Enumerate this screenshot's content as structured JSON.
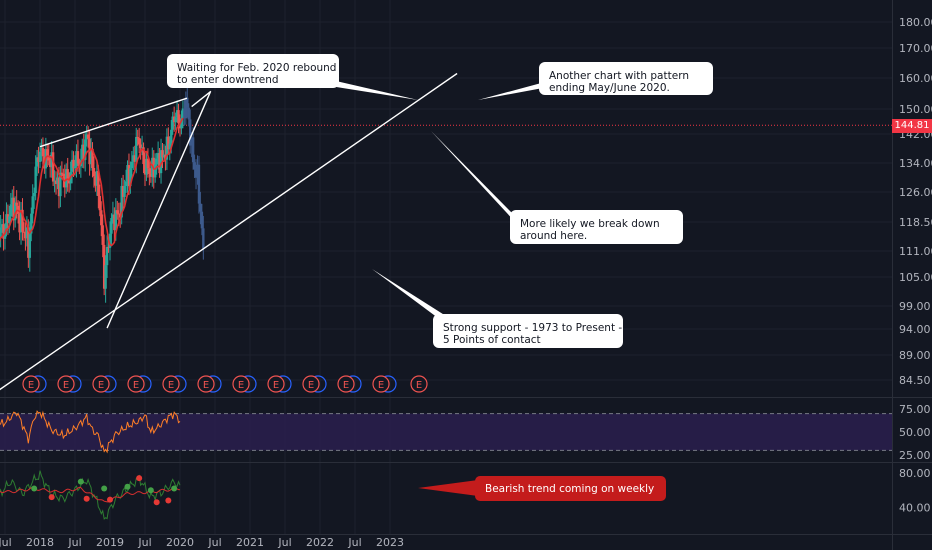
{
  "chart_data": [
    {
      "type": "candlestick",
      "panel": "price",
      "x_labels": [
        "Jul",
        "2018",
        "Jul",
        "2019",
        "Jul",
        "2020",
        "Jul",
        "2021",
        "Jul",
        "2022",
        "Jul",
        "2023"
      ],
      "y_ticks": [
        "180.00",
        "170.00",
        "160.00",
        "150.00",
        "142.00",
        "134.00",
        "126.00",
        "118.50",
        "111.00",
        "105.00",
        "99.00",
        "94.00",
        "89.00",
        "84.50"
      ],
      "y_tick_values": [
        180,
        170,
        160,
        150,
        142,
        134,
        126,
        118.5,
        111,
        105,
        99,
        94,
        89,
        84.5
      ],
      "last_price": "144.81",
      "last_price_value": 144.81,
      "closes": [
        {
          "date": "2017-04",
          "close": 112
        },
        {
          "date": "2017-06",
          "close": 115
        },
        {
          "date": "2017-08",
          "close": 121
        },
        {
          "date": "2017-09",
          "close": 123
        },
        {
          "date": "2017-10",
          "close": 116
        },
        {
          "date": "2017-11",
          "close": 113
        },
        {
          "date": "2017-12",
          "close": 128
        },
        {
          "date": "2018-01",
          "close": 138
        },
        {
          "date": "2018-03",
          "close": 133
        },
        {
          "date": "2018-04",
          "close": 128
        },
        {
          "date": "2018-06",
          "close": 131
        },
        {
          "date": "2018-08",
          "close": 136
        },
        {
          "date": "2018-09",
          "close": 140
        },
        {
          "date": "2018-10",
          "close": 134
        },
        {
          "date": "2018-11",
          "close": 126
        },
        {
          "date": "2018-12",
          "close": 106
        },
        {
          "date": "2019-01",
          "close": 116
        },
        {
          "date": "2019-02",
          "close": 120
        },
        {
          "date": "2019-03",
          "close": 124
        },
        {
          "date": "2019-04",
          "close": 130
        },
        {
          "date": "2019-05",
          "close": 136
        },
        {
          "date": "2019-06",
          "close": 140
        },
        {
          "date": "2019-07",
          "close": 134
        },
        {
          "date": "2019-08",
          "close": 130
        },
        {
          "date": "2019-09",
          "close": 136
        },
        {
          "date": "2019-10",
          "close": 134
        },
        {
          "date": "2019-11",
          "close": 140
        },
        {
          "date": "2019-12",
          "close": 147
        },
        {
          "date": "2020-01",
          "close": 146
        },
        {
          "date": "2020-02",
          "close": 152
        },
        {
          "date": "2020-03",
          "close": 138
        },
        {
          "date": "2020-04",
          "close": 130
        },
        {
          "date": "2020-05",
          "close": 110
        }
      ],
      "earnings_markers": [
        "E",
        "E",
        "E",
        "E",
        "E",
        "E",
        "E",
        "E",
        "E",
        "E",
        "E",
        "E"
      ],
      "annotations": [
        {
          "lines": [
            "Waiting for Feb. 2020 rebound",
            "to enter downtrend"
          ]
        },
        {
          "lines": [
            "Another chart with pattern",
            "ending May/June 2020."
          ]
        },
        {
          "lines": [
            "More likely we break down",
            "around here."
          ]
        },
        {
          "lines": [
            "Strong support - 1973 to Present -",
            "5 Points of contact"
          ]
        }
      ],
      "colors": {
        "background": "#131722",
        "up": "#26a69a",
        "down": "#ef5350",
        "projection": "#3d5a8c",
        "moving_average": "#e03030",
        "last_price_bg": "#f23645"
      }
    },
    {
      "type": "line",
      "panel": "rsi",
      "y_ticks": [
        "75.00",
        "50.00",
        "25.00"
      ],
      "y_tick_values": [
        75,
        50,
        25
      ],
      "band": [
        30,
        70
      ],
      "series_color": "#ff7f27",
      "values": [
        {
          "date": "2017-04",
          "value": 56
        },
        {
          "date": "2017-07",
          "value": 60
        },
        {
          "date": "2017-09",
          "value": 72
        },
        {
          "date": "2017-10",
          "value": 58
        },
        {
          "date": "2017-11",
          "value": 42
        },
        {
          "date": "2017-12",
          "value": 66
        },
        {
          "date": "2018-01",
          "value": 72
        },
        {
          "date": "2018-03",
          "value": 52
        },
        {
          "date": "2018-05",
          "value": 46
        },
        {
          "date": "2018-07",
          "value": 54
        },
        {
          "date": "2018-09",
          "value": 66
        },
        {
          "date": "2018-10",
          "value": 52
        },
        {
          "date": "2018-11",
          "value": 46
        },
        {
          "date": "2018-12",
          "value": 28
        },
        {
          "date": "2019-02",
          "value": 48
        },
        {
          "date": "2019-04",
          "value": 56
        },
        {
          "date": "2019-06",
          "value": 62
        },
        {
          "date": "2019-07",
          "value": 68
        },
        {
          "date": "2019-08",
          "value": 50
        },
        {
          "date": "2019-09",
          "value": 54
        },
        {
          "date": "2019-11",
          "value": 66
        },
        {
          "date": "2019-12",
          "value": 70
        },
        {
          "date": "2020-01",
          "value": 62
        }
      ]
    },
    {
      "type": "line",
      "panel": "trend",
      "y_ticks": [
        "80.00",
        "40.00"
      ],
      "y_tick_values": [
        80,
        40
      ],
      "series": [
        {
          "color": "#2e7d32",
          "values": [
            {
              "date": "2017-04",
              "value": 64
            },
            {
              "date": "2017-06",
              "value": 55
            },
            {
              "date": "2017-08",
              "value": 70
            },
            {
              "date": "2017-10",
              "value": 56
            },
            {
              "date": "2017-12",
              "value": 72
            },
            {
              "date": "2018-01",
              "value": 78
            },
            {
              "date": "2018-03",
              "value": 55
            },
            {
              "date": "2018-05",
              "value": 50
            },
            {
              "date": "2018-07",
              "value": 60
            },
            {
              "date": "2018-09",
              "value": 72
            },
            {
              "date": "2018-11",
              "value": 44
            },
            {
              "date": "2018-12",
              "value": 26
            },
            {
              "date": "2019-02",
              "value": 50
            },
            {
              "date": "2019-04",
              "value": 62
            },
            {
              "date": "2019-06",
              "value": 74
            },
            {
              "date": "2019-08",
              "value": 52
            },
            {
              "date": "2019-10",
              "value": 58
            },
            {
              "date": "2019-12",
              "value": 70
            },
            {
              "date": "2020-01",
              "value": 64
            }
          ]
        },
        {
          "color": "#d32f2f",
          "values": [
            {
              "date": "2017-04",
              "value": 60
            },
            {
              "date": "2017-08",
              "value": 58
            },
            {
              "date": "2017-12",
              "value": 62
            },
            {
              "date": "2018-04",
              "value": 58
            },
            {
              "date": "2018-08",
              "value": 62
            },
            {
              "date": "2018-12",
              "value": 46
            },
            {
              "date": "2019-04",
              "value": 56
            },
            {
              "date": "2019-08",
              "value": 58
            },
            {
              "date": "2020-01",
              "value": 62
            }
          ]
        }
      ],
      "red_dots": [
        {
          "date": "2018-03",
          "value": 52
        },
        {
          "date": "2018-09",
          "value": 50
        },
        {
          "date": "2019-01",
          "value": 49
        },
        {
          "date": "2019-06",
          "value": 74
        },
        {
          "date": "2019-09",
          "value": 46
        },
        {
          "date": "2019-11",
          "value": 48
        }
      ],
      "green_dots": [
        {
          "date": "2017-12",
          "value": 62
        },
        {
          "date": "2018-08",
          "value": 70
        },
        {
          "date": "2018-12",
          "value": 62
        },
        {
          "date": "2019-04",
          "value": 64
        },
        {
          "date": "2019-08",
          "value": 60
        },
        {
          "date": "2019-12",
          "value": 62
        }
      ],
      "annotation": "Bearish trend coming on weekly"
    }
  ]
}
